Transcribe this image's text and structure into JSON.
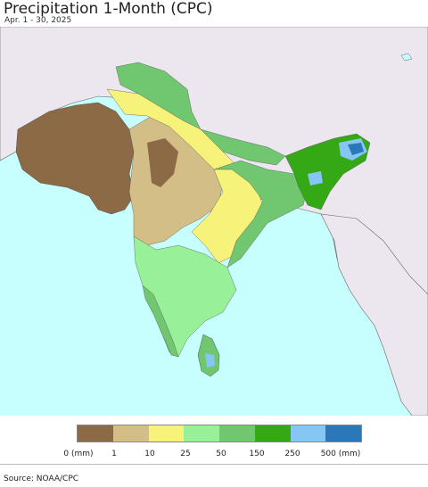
{
  "title": "Precipitation 1-Month (CPC)",
  "subtitle": "Apr. 1 - 30, 2025",
  "legend": {
    "colors": [
      "#8b6a45",
      "#d2be86",
      "#f7f27a",
      "#98f098",
      "#70c770",
      "#34a815",
      "#86c6f5",
      "#2a78b9"
    ],
    "labels": [
      "0 (mm)",
      "1",
      "10",
      "25",
      "50",
      "150",
      "250",
      "500 (mm)"
    ]
  },
  "source": "Source: NOAA/CPC",
  "colors": {
    "ocean": "#c7ffff",
    "land_no_data": "#ece6ee"
  }
}
